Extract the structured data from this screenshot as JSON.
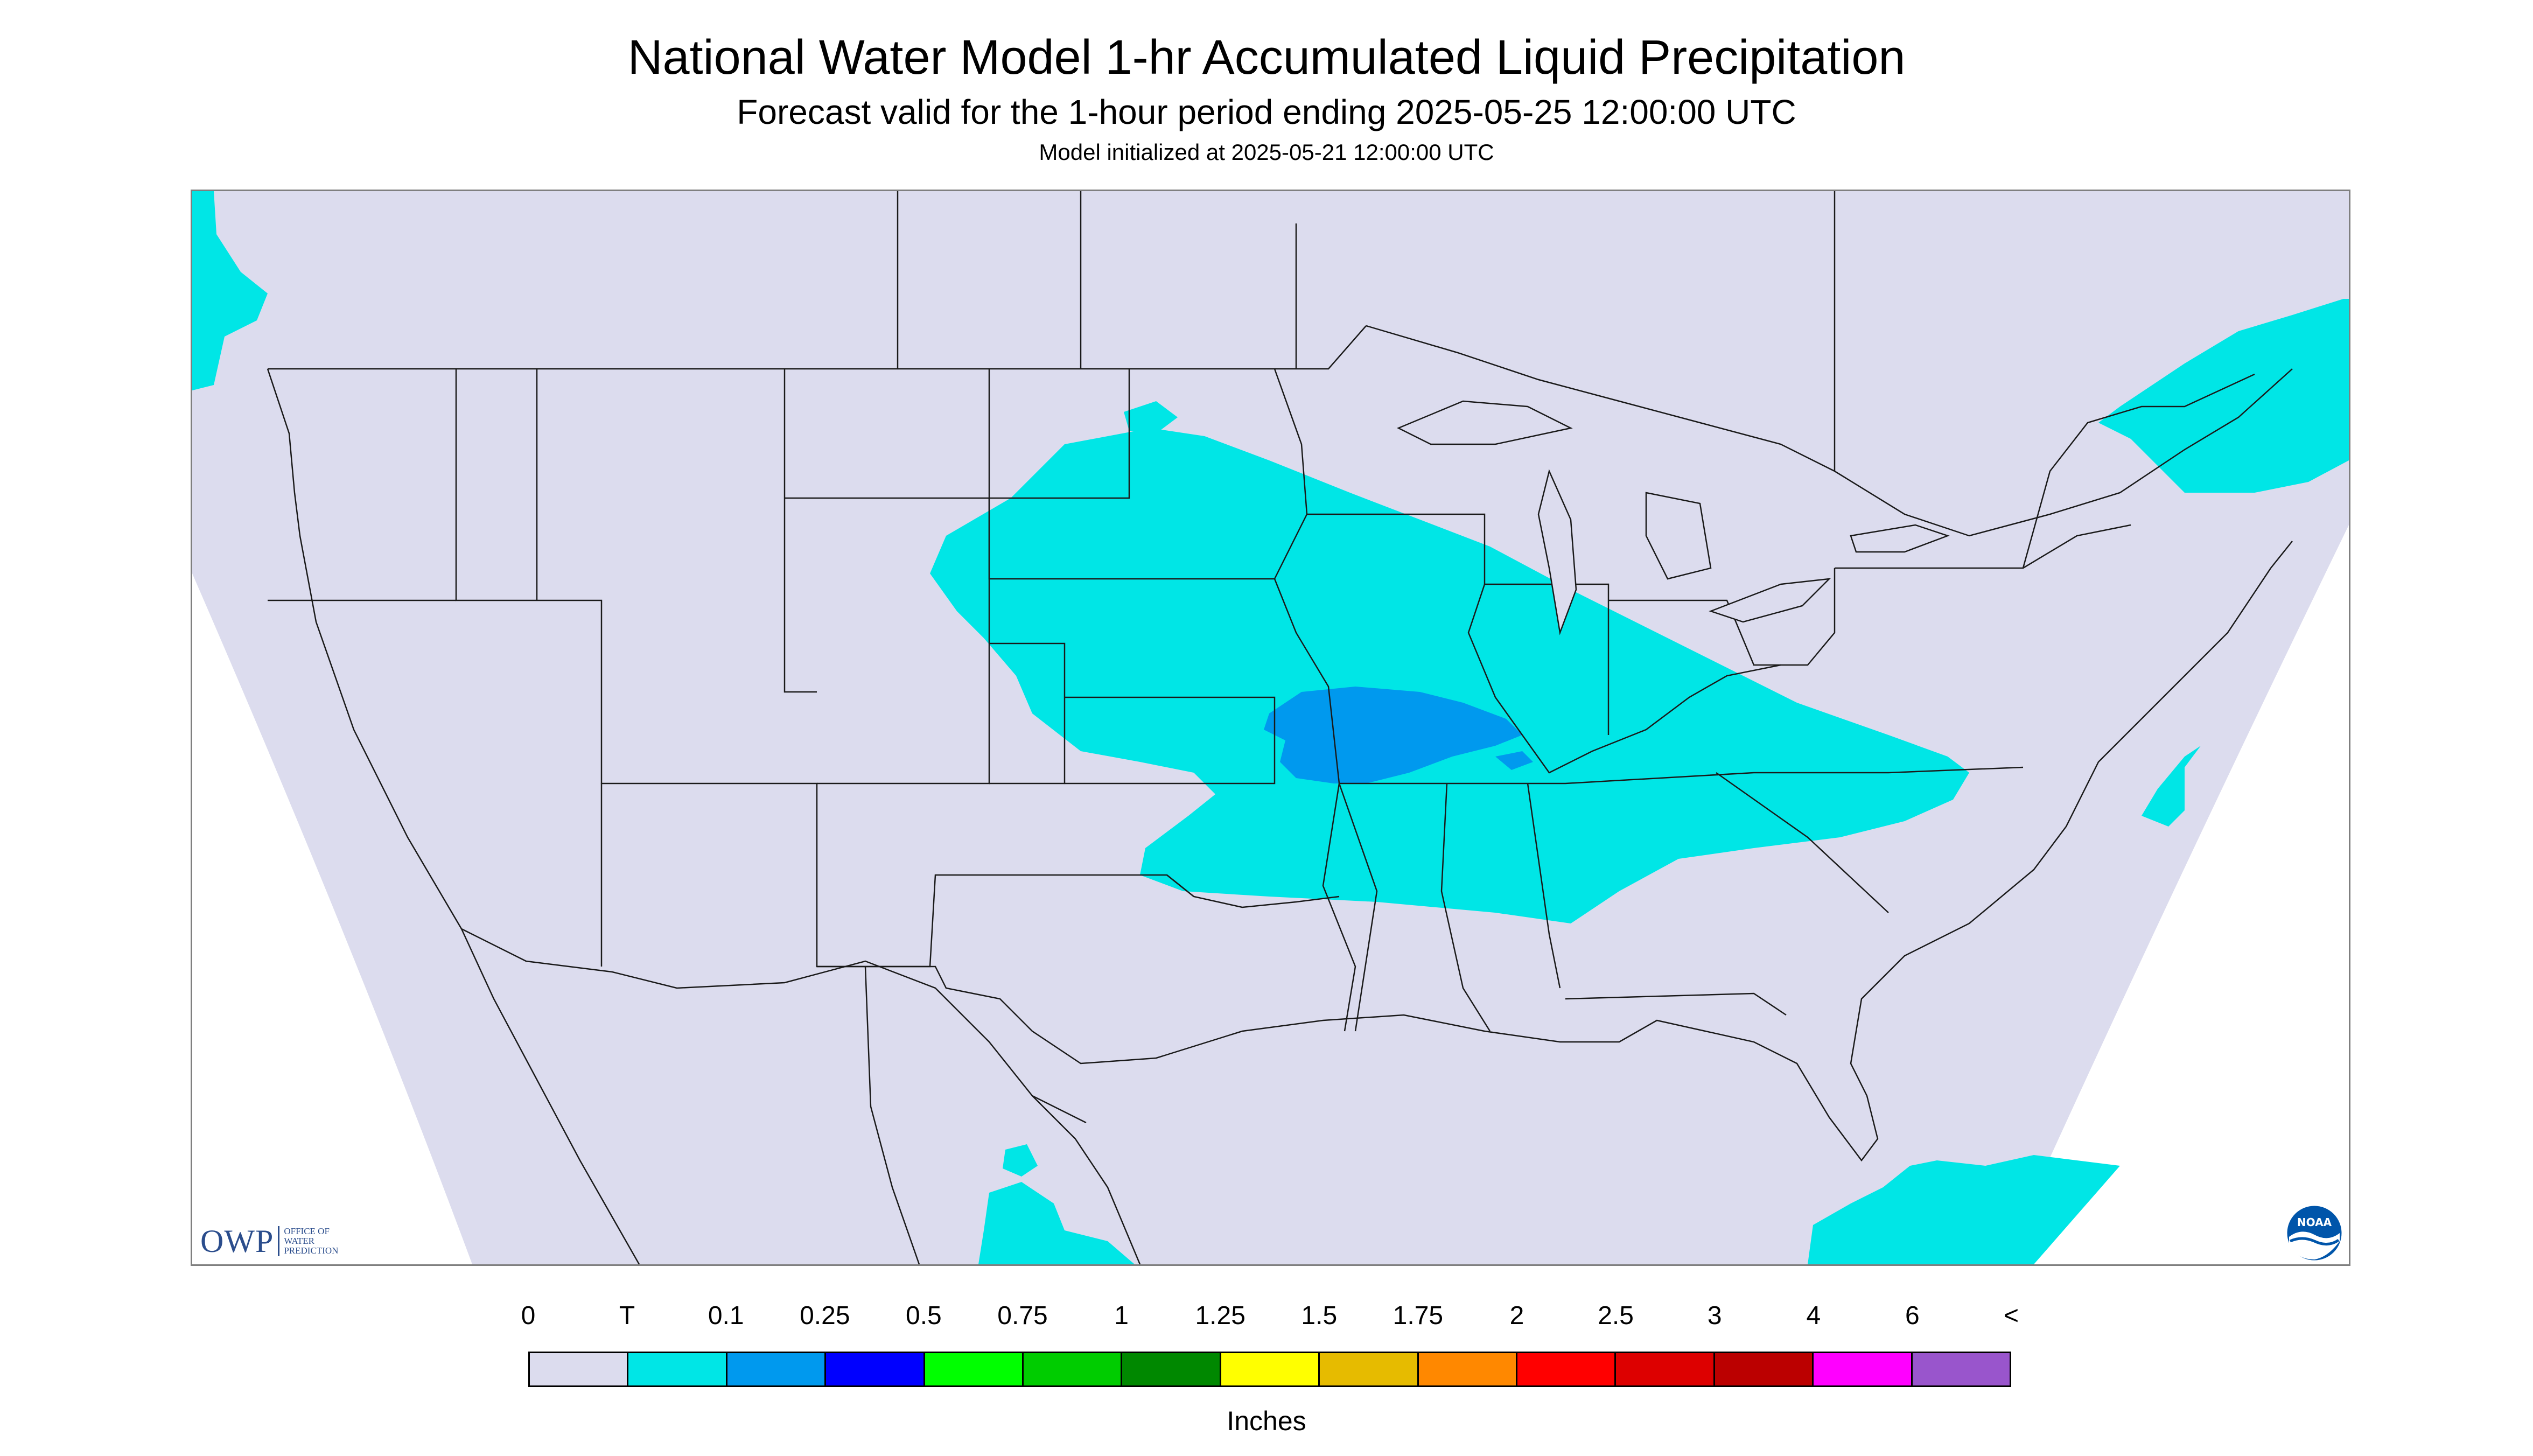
{
  "title": {
    "main": "National Water Model 1-hr Accumulated Liquid Precipitation",
    "subtitle": "Forecast valid for the 1-hour period ending 2025-05-25 12:00:00 UTC",
    "init": "Model initialized at 2025-05-21 12:00:00 UTC"
  },
  "map": {
    "projection": "lambert-conformal-conus",
    "background_color": "#dcdcee",
    "outside_domain_color": "#ffffff",
    "boundary_color": "#1a1a1a",
    "precip_areas": [
      {
        "category": "T",
        "color": "#00e6e6",
        "region": "Central Plains to Ohio Valley"
      },
      {
        "category": "0.1",
        "color": "#0099ee",
        "region": "Missouri"
      },
      {
        "category": "T",
        "color": "#00e6e6",
        "region": "Pacific Northwest coast"
      },
      {
        "category": "T",
        "color": "#00e6e6",
        "region": "New England"
      },
      {
        "category": "T",
        "color": "#00e6e6",
        "region": "Atlantic offshore"
      },
      {
        "category": "T",
        "color": "#00e6e6",
        "region": "Caribbean / Cuba"
      },
      {
        "category": "T",
        "color": "#00e6e6",
        "region": "Yucatan / Central America"
      }
    ]
  },
  "logos": {
    "owp": {
      "mark": "OWP",
      "lines": [
        "OFFICE OF",
        "WATER",
        "PREDICTION"
      ]
    },
    "noaa": {
      "icon": "noaa-logo-icon",
      "text": "NOAA"
    }
  },
  "legend": {
    "labels": [
      "0",
      "T",
      "0.1",
      "0.25",
      "0.5",
      "0.75",
      "1",
      "1.25",
      "1.5",
      "1.75",
      "2",
      "2.5",
      "3",
      "4",
      "6",
      "<"
    ],
    "colors": [
      "#dcdcee",
      "#00e6e6",
      "#0099ee",
      "#0000ff",
      "#00ff00",
      "#00cc00",
      "#008800",
      "#ffff00",
      "#e6bb00",
      "#ff8800",
      "#ff0000",
      "#dd0000",
      "#bb0000",
      "#ff00ff",
      "#9955cc"
    ],
    "units": "Inches"
  }
}
